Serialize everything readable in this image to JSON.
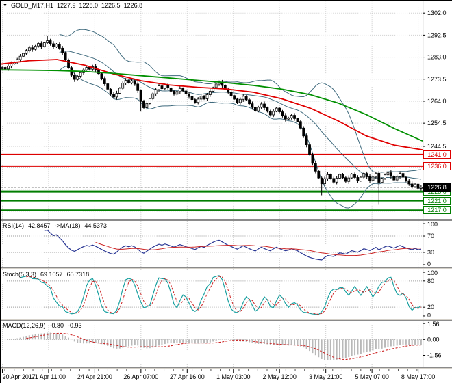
{
  "window": {
    "title": "GOLD_M17,H1"
  },
  "colors": {
    "background": "#ffffff",
    "grid": "#cccccc",
    "candle_up_fill": "#ffffff",
    "candle_down_fill": "#000000",
    "candle_outline": "#000000",
    "bollinger": "#3f6a7d",
    "ma_red": "#e00000",
    "ma_green": "#009000",
    "hline_red": "#dd0000",
    "hline_green": "#007d00",
    "rsi_line": "#283593",
    "rsi_ma": "#cc2222",
    "stoch_k": "#18a0a0",
    "stoch_d": "#cc2222",
    "macd_hist": "#b8b8b8",
    "macd_signal": "#cc2222"
  },
  "header": {
    "collapse_icon": "▼",
    "symbol": "GOLD_M17,H1",
    "open": "1227.9",
    "high": "1228.0",
    "low": "1226.5",
    "close": "1226.8"
  },
  "panels": {
    "rsi": {
      "label_name": "RSI(14)",
      "label_value": "42.8457",
      "label_ma": "->MA(18)",
      "label_ma_value": "44.5373",
      "ticks": [
        100,
        70,
        30,
        0
      ],
      "levels": [
        70,
        30
      ]
    },
    "stoch": {
      "label_name": "Stoch(5,3,3)",
      "label_k": "69.1057",
      "label_d": "65.7318",
      "ticks": [
        100,
        80,
        20,
        0
      ],
      "levels": [
        80,
        20
      ]
    },
    "macd": {
      "label_name": "MACD(12,26,9)",
      "label_main": "-0.80",
      "label_signal": "-0.93",
      "ticks": [
        1.56,
        0.0,
        -1.56
      ]
    }
  },
  "time_axis": {
    "labels": [
      {
        "text": "20 Apr 2017",
        "pos": 0.004
      },
      {
        "text": "21 Apr 11:00",
        "pos": 0.1135
      },
      {
        "text": "24 Apr 21:00",
        "pos": 0.223
      },
      {
        "text": "26 Apr 07:00",
        "pos": 0.3325
      },
      {
        "text": "27 Apr 16:00",
        "pos": 0.442
      },
      {
        "text": "1 May 03:00",
        "pos": 0.5515
      },
      {
        "text": "2 May 12:00",
        "pos": 0.661
      },
      {
        "text": "3 May 21:00",
        "pos": 0.7705
      },
      {
        "text": "5 May 07:00",
        "pos": 0.88
      },
      {
        "text": "8 May 17:00",
        "pos": 0.9895
      }
    ]
  },
  "chart_data": [
    {
      "type": "candlestick",
      "title": "GOLD_M17,H1",
      "timeframe": "H1",
      "ylim": [
        1213.3,
        1307.3
      ],
      "yticks": [
        1302.0,
        1292.5,
        1283.0,
        1273.5,
        1264.0,
        1254.5,
        1244.5
      ],
      "ygrid_extra": [
        1235.5,
        1226.0,
        1216.5
      ],
      "closes": [
        1278.6,
        1277.9,
        1279.2,
        1280.1,
        1280.8,
        1282.0,
        1283.4,
        1284.6,
        1285.9,
        1287.1,
        1286.4,
        1287.8,
        1288.9,
        1287.6,
        1289.2,
        1290.1,
        1288.8,
        1287.5,
        1288.6,
        1286.9,
        1285.0,
        1281.8,
        1278.5,
        1275.2,
        1273.4,
        1274.8,
        1276.3,
        1277.5,
        1278.6,
        1277.8,
        1278.9,
        1277.6,
        1275.9,
        1273.8,
        1271.5,
        1269.2,
        1267.0,
        1265.8,
        1267.4,
        1269.6,
        1271.8,
        1273.0,
        1271.9,
        1272.8,
        1271.4,
        1268.6,
        1263.9,
        1261.2,
        1263.0,
        1265.1,
        1267.2,
        1269.0,
        1270.6,
        1269.4,
        1270.9,
        1269.7,
        1268.3,
        1267.0,
        1268.2,
        1269.5,
        1268.4,
        1267.1,
        1266.0,
        1264.7,
        1263.5,
        1264.9,
        1266.2,
        1265.0,
        1266.8,
        1268.3,
        1269.9,
        1271.4,
        1272.1,
        1270.8,
        1269.2,
        1267.8,
        1266.4,
        1264.9,
        1263.4,
        1264.8,
        1266.1,
        1264.6,
        1262.9,
        1261.3,
        1259.8,
        1261.4,
        1262.8,
        1261.2,
        1259.6,
        1258.1,
        1259.6,
        1261.0,
        1259.4,
        1257.8,
        1256.3,
        1256.8,
        1257.9,
        1256.5,
        1255.2,
        1252.4,
        1249.0,
        1245.2,
        1241.0,
        1237.2,
        1233.8,
        1230.9,
        1228.4,
        1230.6,
        1232.3,
        1230.7,
        1229.1,
        1230.8,
        1232.4,
        1231.0,
        1229.4,
        1230.9,
        1232.5,
        1231.1,
        1229.6,
        1231.2,
        1232.8,
        1231.4,
        1229.8,
        1231.3,
        1232.9,
        1229.0,
        1230.7,
        1232.2,
        1233.1,
        1231.6,
        1230.0,
        1231.5,
        1232.8,
        1231.2,
        1229.7,
        1228.3,
        1227.1,
        1228.2,
        1226.4,
        1226.8
      ],
      "wick_overrides": [
        {
          "i": 15,
          "high": 1292.2
        },
        {
          "i": 46,
          "low": 1259.8
        },
        {
          "i": 106,
          "low": 1223.4
        },
        {
          "i": 125,
          "low": 1219.3
        }
      ],
      "overlays": {
        "bollinger": {
          "period": 20,
          "deviation": 2
        },
        "ma_red": {
          "points": [
            1280.0,
            1281.5,
            1282.0,
            1279.5,
            1275.8,
            1272.8,
            1271.0,
            1270.0,
            1269.3,
            1267.8,
            1265.0,
            1261.0,
            1255.5,
            1249.0,
            1245.0,
            1243.0
          ]
        },
        "ma_green": {
          "points": [
            1277.5,
            1277.4,
            1277.2,
            1276.8,
            1276.0,
            1275.0,
            1274.0,
            1273.0,
            1272.0,
            1270.8,
            1269.2,
            1266.8,
            1263.2,
            1258.2,
            1252.2,
            1246.8
          ]
        }
      },
      "hlines": [
        {
          "label": "1241.0",
          "value": 1241.0,
          "color": "red",
          "width": 2
        },
        {
          "label": "1236.0",
          "value": 1236.0,
          "color": "red",
          "width": 2
        },
        {
          "label": "1226.8",
          "value": 1226.8,
          "color": "black",
          "style": "price"
        },
        {
          "label": "1225.0",
          "value": 1225.0,
          "color": "green",
          "width": 3
        },
        {
          "label": "1221.0",
          "value": 1221.0,
          "color": "green",
          "width": 2
        },
        {
          "label": "1217.0",
          "value": 1217.0,
          "color": "green",
          "width": 2
        }
      ]
    },
    {
      "type": "line",
      "name": "RSI",
      "params": {
        "period": 14,
        "ma_period": 18
      },
      "ylim": [
        0,
        100
      ],
      "yticks": [
        100,
        70,
        30,
        0
      ],
      "current": 42.8457,
      "ma_current": 44.5373,
      "derived_from": "closes"
    },
    {
      "type": "line",
      "name": "Stochastic",
      "params": {
        "k": 5,
        "d": 3,
        "slowing": 3
      },
      "ylim": [
        0,
        100
      ],
      "yticks": [
        100,
        80,
        20,
        0
      ],
      "current_k": 69.1057,
      "current_d": 65.7318,
      "derived_from": "ohlc"
    },
    {
      "type": "bar",
      "name": "MACD",
      "params": {
        "fast": 12,
        "slow": 26,
        "signal": 9
      },
      "ylim": [
        -2.6,
        1.7
      ],
      "yticks": [
        1.56,
        0.0,
        -1.56
      ],
      "current": -0.8,
      "signal_current": -0.93,
      "derived_from": "closes"
    }
  ]
}
